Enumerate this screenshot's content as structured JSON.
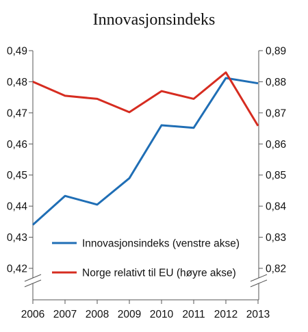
{
  "chart_data": {
    "type": "line",
    "title": "Innovasjonsindeks",
    "categories": [
      "2006",
      "2007",
      "2008",
      "2009",
      "2010",
      "2011",
      "2012",
      "2013"
    ],
    "series": [
      {
        "name": "Innovasjonsindeks (venstre akse)",
        "axis": "left",
        "color": "#1f6eb5",
        "values": [
          0.434,
          0.4433,
          0.4405,
          0.449,
          0.466,
          0.4652,
          0.4812,
          0.4795
        ]
      },
      {
        "name": "Norge relativt til EU (høyre akse)",
        "axis": "right",
        "color": "#d62c20",
        "values": [
          0.88,
          0.8755,
          0.8745,
          0.8702,
          0.877,
          0.8745,
          0.883,
          0.8658
        ]
      }
    ],
    "y_left": {
      "ylim": [
        0.42,
        0.49
      ],
      "ticks": [
        "0,42",
        "0,43",
        "0,44",
        "0,45",
        "0,46",
        "0,47",
        "0,48",
        "0,49"
      ],
      "axis_break": true
    },
    "y_right": {
      "ylim": [
        0.82,
        0.89
      ],
      "ticks": [
        "0,82",
        "0,83",
        "0,84",
        "0,85",
        "0,86",
        "0,87",
        "0,88",
        "0,89"
      ],
      "axis_break": true
    },
    "grid": false,
    "legend_position": "bottom-right"
  }
}
